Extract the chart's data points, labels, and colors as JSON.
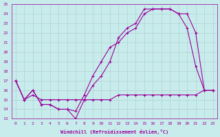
{
  "xlabel": "Windchill (Refroidissement éolien,°C)",
  "bg_color": "#c8ecec",
  "line_color": "#990099",
  "grid_color": "#b0d0d0",
  "xmin": 0,
  "xmax": 23,
  "ymin": 13,
  "ymax": 25,
  "line1_x": [
    0,
    1,
    2,
    3,
    4,
    5,
    6,
    7,
    8,
    9,
    10,
    11,
    12,
    13,
    14,
    15,
    16,
    17,
    18,
    19,
    20,
    21,
    22,
    23
  ],
  "line1_y": [
    17,
    15,
    16,
    14.5,
    14.5,
    14,
    14,
    13,
    15,
    16.5,
    17.5,
    19,
    21.5,
    22.5,
    23,
    24.5,
    24.5,
    24.5,
    24.5,
    24,
    22.5,
    18.5,
    16,
    16
  ],
  "line2_x": [
    0,
    1,
    2,
    3,
    4,
    5,
    6,
    7,
    8,
    9,
    10,
    11,
    12,
    13,
    14,
    15,
    16,
    17,
    18,
    19,
    20,
    21,
    22,
    23
  ],
  "line2_y": [
    17,
    15,
    16,
    14.5,
    14.5,
    14,
    14,
    13.8,
    15.5,
    17.5,
    19,
    20.5,
    21,
    22,
    22.5,
    24,
    24.5,
    24.5,
    24.5,
    24,
    24,
    22,
    16,
    16
  ],
  "line3_x": [
    0,
    1,
    2,
    3,
    4,
    5,
    6,
    7,
    8,
    9,
    10,
    11,
    12,
    13,
    14,
    15,
    16,
    17,
    18,
    19,
    20,
    21,
    22,
    23
  ],
  "line3_y": [
    17,
    15,
    15.5,
    15,
    15,
    15,
    15,
    15,
    15,
    15,
    15,
    15,
    15.5,
    15.5,
    15.5,
    15.5,
    15.5,
    15.5,
    15.5,
    15.5,
    15.5,
    15.5,
    16,
    16
  ]
}
